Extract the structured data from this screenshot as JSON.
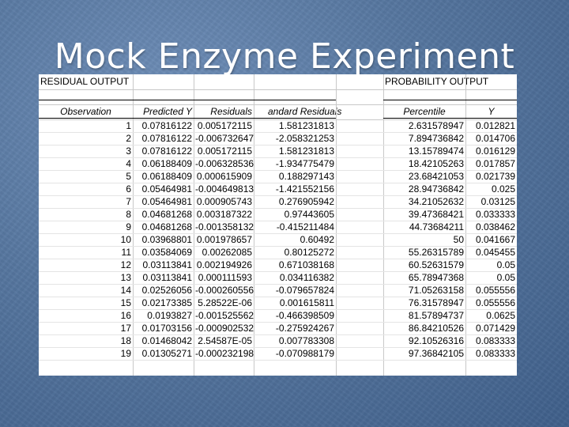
{
  "title": "Mock Enzyme Experiment",
  "residual_output": {
    "section_label": "RESIDUAL OUTPUT",
    "headers": [
      "Observation",
      "Predicted Y",
      "Residuals",
      "Standard Residuals"
    ],
    "header_visible": [
      "Observation",
      "Predicted Y",
      "Residuals",
      "andard Residuals"
    ],
    "rows": [
      [
        "1",
        "0.07816122",
        "0.005172115",
        "1.581231813"
      ],
      [
        "2",
        "0.07816122",
        "-0.006732647",
        "-2.058321253"
      ],
      [
        "3",
        "0.07816122",
        "0.005172115",
        "1.581231813"
      ],
      [
        "4",
        "0.06188409",
        "-0.006328536",
        "-1.934775479"
      ],
      [
        "5",
        "0.06188409",
        "0.000615909",
        "0.188297143"
      ],
      [
        "6",
        "0.05464981",
        "-0.004649813",
        "-1.421552156"
      ],
      [
        "7",
        "0.05464981",
        "0.000905743",
        "0.276905942"
      ],
      [
        "8",
        "0.04681268",
        "0.003187322",
        "0.97443605"
      ],
      [
        "9",
        "0.04681268",
        "-0.001358132",
        "-0.415211484"
      ],
      [
        "10",
        "0.03968801",
        "0.001978657",
        "0.60492"
      ],
      [
        "11",
        "0.03584069",
        "0.00262085",
        "0.80125272"
      ],
      [
        "12",
        "0.03113841",
        "0.002194926",
        "0.671038168"
      ],
      [
        "13",
        "0.03113841",
        "0.000111593",
        "0.034116382"
      ],
      [
        "14",
        "0.02526056",
        "-0.000260556",
        "-0.079657824"
      ],
      [
        "15",
        "0.02173385",
        "5.28522E-06",
        "0.001615811"
      ],
      [
        "16",
        "0.0193827",
        "-0.001525562",
        "-0.466398509"
      ],
      [
        "17",
        "0.01703156",
        "-0.000902532",
        "-0.275924267"
      ],
      [
        "18",
        "0.01468042",
        "2.54587E-05",
        "0.007783308"
      ],
      [
        "19",
        "0.01305271",
        "-0.000232198",
        "-0.070988179"
      ]
    ]
  },
  "probability_output": {
    "section_label": "PROBABILITY OUTPUT",
    "headers": [
      "Percentile",
      "Y"
    ],
    "rows": [
      [
        "2.631578947",
        "0.012821"
      ],
      [
        "7.894736842",
        "0.014706"
      ],
      [
        "13.15789474",
        "0.016129"
      ],
      [
        "18.42105263",
        "0.017857"
      ],
      [
        "23.68421053",
        "0.021739"
      ],
      [
        "28.94736842",
        "0.025"
      ],
      [
        "34.21052632",
        "0.03125"
      ],
      [
        "39.47368421",
        "0.033333"
      ],
      [
        "44.73684211",
        "0.038462"
      ],
      [
        "50",
        "0.041667"
      ],
      [
        "55.26315789",
        "0.045455"
      ],
      [
        "60.52631579",
        "0.05"
      ],
      [
        "65.78947368",
        "0.05"
      ],
      [
        "71.05263158",
        "0.055556"
      ],
      [
        "76.31578947",
        "0.055556"
      ],
      [
        "81.57894737",
        "0.0625"
      ],
      [
        "86.84210526",
        "0.071429"
      ],
      [
        "92.10526316",
        "0.083333"
      ],
      [
        "97.36842105",
        "0.083333"
      ]
    ]
  }
}
